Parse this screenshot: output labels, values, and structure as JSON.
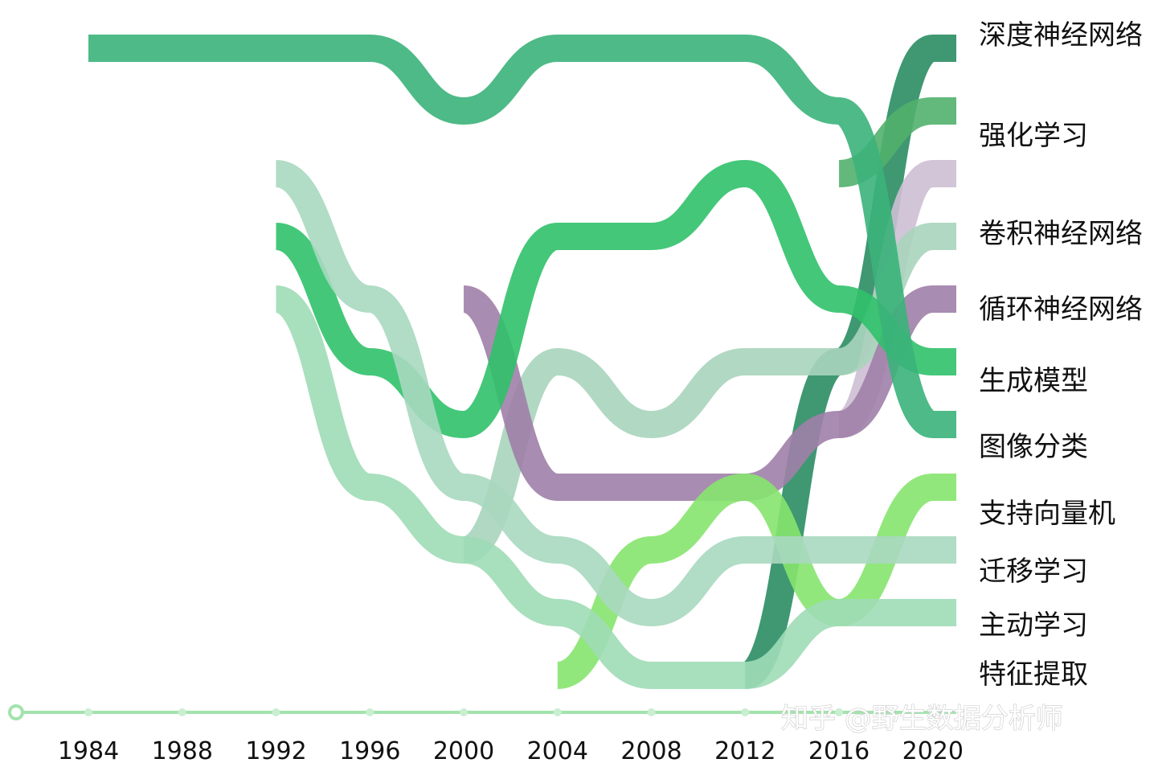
{
  "watermark": "知乎 @野生数据分析师",
  "chart_data": {
    "type": "area",
    "subtype": "bump-streamgraph",
    "title": "",
    "xlabel": "",
    "ylabel": "",
    "x_ticks": [
      1984,
      1988,
      1992,
      1996,
      2000,
      2004,
      2008,
      2012,
      2016,
      2020
    ],
    "xlim": [
      1984,
      2021
    ],
    "legend_placement": "right",
    "grid": false,
    "years": [
      1984,
      1988,
      1992,
      1996,
      2000,
      2004,
      2008,
      2012,
      2016,
      2020
    ],
    "series": [
      {
        "name": "深度神经网络",
        "color": "#2a8d63",
        "ranks": [
          null,
          null,
          null,
          null,
          null,
          null,
          null,
          11,
          6,
          1
        ]
      },
      {
        "name": "强化学习",
        "color": "#52b06d",
        "ranks": [
          null,
          null,
          null,
          null,
          null,
          null,
          null,
          null,
          3,
          2
        ]
      },
      {
        "name": "卷积神经网络",
        "color": "#cdbfd4",
        "ranks": [
          null,
          null,
          null,
          null,
          null,
          null,
          null,
          null,
          7,
          3
        ]
      },
      {
        "name": "循环神经网络",
        "color": "#a9d4bd",
        "ranks": [
          null,
          null,
          null,
          null,
          9,
          6,
          7,
          6,
          6,
          4
        ]
      },
      {
        "name": "生成模型",
        "color": "#a07fa8",
        "ranks": [
          null,
          null,
          null,
          null,
          5,
          8,
          8,
          8,
          7,
          5
        ]
      },
      {
        "name": "图像分类",
        "color": "#30c16a",
        "ranks": [
          null,
          null,
          4,
          6,
          7,
          4,
          4,
          3,
          5,
          6
        ]
      },
      {
        "name": "支持向量机",
        "color": "#3bb27a",
        "ranks": [
          1,
          1,
          1,
          1,
          2,
          1,
          1,
          1,
          2,
          7
        ]
      },
      {
        "name": "迁移学习",
        "color": "#86e46e",
        "ranks": [
          null,
          null,
          null,
          null,
          null,
          11,
          9,
          8,
          10,
          8
        ]
      },
      {
        "name": "主动学习",
        "color": "#a9d8bf",
        "ranks": [
          null,
          null,
          3,
          5,
          8,
          9,
          10,
          9,
          9,
          9
        ]
      },
      {
        "name": "特征提取",
        "color": "#9fdcb6",
        "ranks": [
          null,
          null,
          5,
          8,
          9,
          10,
          11,
          11,
          10,
          10
        ]
      }
    ]
  }
}
